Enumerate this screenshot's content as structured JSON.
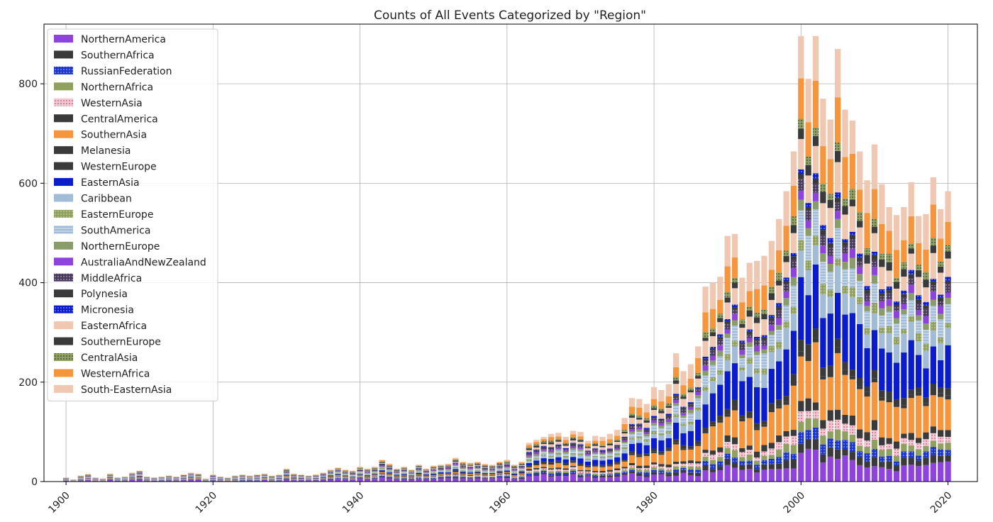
{
  "chart_data": {
    "type": "bar",
    "stacked": true,
    "title": "Counts of All Events Categorized by \"Region\"",
    "xlabel": "",
    "ylabel": "",
    "xlim": [
      1897,
      2024
    ],
    "ylim": [
      0,
      920
    ],
    "x_ticks": [
      1900,
      1920,
      1940,
      1960,
      1980,
      2000,
      2020
    ],
    "y_ticks": [
      0,
      200,
      400,
      600,
      800
    ],
    "grid": true,
    "legend_position": "top-left",
    "totals_by_year": {
      "1900": 8,
      "1901": 4,
      "1902": 12,
      "1903": 15,
      "1904": 8,
      "1905": 6,
      "1906": 16,
      "1907": 8,
      "1908": 10,
      "1909": 18,
      "1910": 22,
      "1911": 10,
      "1912": 8,
      "1913": 10,
      "1914": 12,
      "1915": 10,
      "1916": 14,
      "1917": 18,
      "1918": 16,
      "1919": 6,
      "1920": 14,
      "1921": 10,
      "1922": 8,
      "1923": 12,
      "1924": 14,
      "1925": 12,
      "1926": 14,
      "1927": 16,
      "1928": 12,
      "1929": 14,
      "1930": 26,
      "1931": 16,
      "1932": 14,
      "1933": 12,
      "1934": 14,
      "1935": 18,
      "1936": 24,
      "1937": 28,
      "1938": 24,
      "1939": 22,
      "1940": 30,
      "1941": 26,
      "1942": 30,
      "1943": 44,
      "1944": 36,
      "1945": 26,
      "1946": 30,
      "1947": 24,
      "1948": 34,
      "1949": 26,
      "1950": 32,
      "1951": 34,
      "1952": 36,
      "1953": 48,
      "1954": 40,
      "1955": 38,
      "1956": 40,
      "1957": 36,
      "1958": 34,
      "1959": 40,
      "1960": 44,
      "1961": 34,
      "1962": 40,
      "1963": 78,
      "1964": 84,
      "1965": 90,
      "1966": 96,
      "1967": 98,
      "1968": 90,
      "1969": 102,
      "1970": 100,
      "1971": 82,
      "1972": 92,
      "1973": 90,
      "1974": 96,
      "1975": 104,
      "1976": 128,
      "1977": 168,
      "1978": 166,
      "1979": 156,
      "1980": 190,
      "1981": 184,
      "1982": 196,
      "1983": 258,
      "1984": 222,
      "1985": 236,
      "1986": 272,
      "1987": 392,
      "1988": 400,
      "1989": 412,
      "1990": 494,
      "1991": 498,
      "1992": 410,
      "1993": 440,
      "1994": 444,
      "1995": 454,
      "1996": 484,
      "1997": 528,
      "1998": 584,
      "1999": 664,
      "2000": 896,
      "2001": 810,
      "2002": 896,
      "2003": 770,
      "2004": 728,
      "2005": 870,
      "2006": 748,
      "2007": 726,
      "2008": 664,
      "2009": 606,
      "2010": 678,
      "2011": 598,
      "2012": 552,
      "2013": 536,
      "2014": 552,
      "2015": 602,
      "2016": 534,
      "2017": 538,
      "2018": 612,
      "2019": 548,
      "2020": 584
    },
    "series": [
      {
        "name": "NorthernAmerica",
        "color": "#8e44dc"
      },
      {
        "name": "SouthernAfrica",
        "color": "#3a3a3a"
      },
      {
        "name": "RussianFederation",
        "color": "#1b36c9",
        "hatch": "dots"
      },
      {
        "name": "NorthernAfrica",
        "color": "#8fa05f"
      },
      {
        "name": "WesternAsia",
        "color": "#f1c9d4",
        "hatch": "dots-red"
      },
      {
        "name": "CentralAmerica",
        "color": "#3a3a3a"
      },
      {
        "name": "SouthernAsia",
        "color": "#f7953c"
      },
      {
        "name": "Melanesia",
        "color": "#3a3a3a"
      },
      {
        "name": "WesternEurope",
        "color": "#3a3a3a"
      },
      {
        "name": "EasternAsia",
        "color": "#0a1ccc"
      },
      {
        "name": "Caribbean",
        "color": "#a2bcd8"
      },
      {
        "name": "EasternEurope",
        "color": "#8fa05f",
        "hatch": "dots"
      },
      {
        "name": "SouthAmerica",
        "color": "#a2bcd8",
        "hatch": "lines"
      },
      {
        "name": "NorthernEurope",
        "color": "#8a9c6a"
      },
      {
        "name": "AustraliaAndNewZealand",
        "color": "#8e44dc"
      },
      {
        "name": "MiddleAfrica",
        "color": "#4a3a5e",
        "hatch": "dots"
      },
      {
        "name": "Polynesia",
        "color": "#3a3a3a"
      },
      {
        "name": "Micronesia",
        "color": "#0a1ccc",
        "hatch": "dots"
      },
      {
        "name": "EasternAfrica",
        "color": "#f0c8b2"
      },
      {
        "name": "SouthernEurope",
        "color": "#3a3a3a"
      },
      {
        "name": "CentralAsia",
        "color": "#8fa05f",
        "hatch": "dots-dark"
      },
      {
        "name": "WesternAfrica",
        "color": "#f7953c"
      },
      {
        "name": "South-EasternAsia",
        "color": "#f0c8b2"
      }
    ]
  }
}
